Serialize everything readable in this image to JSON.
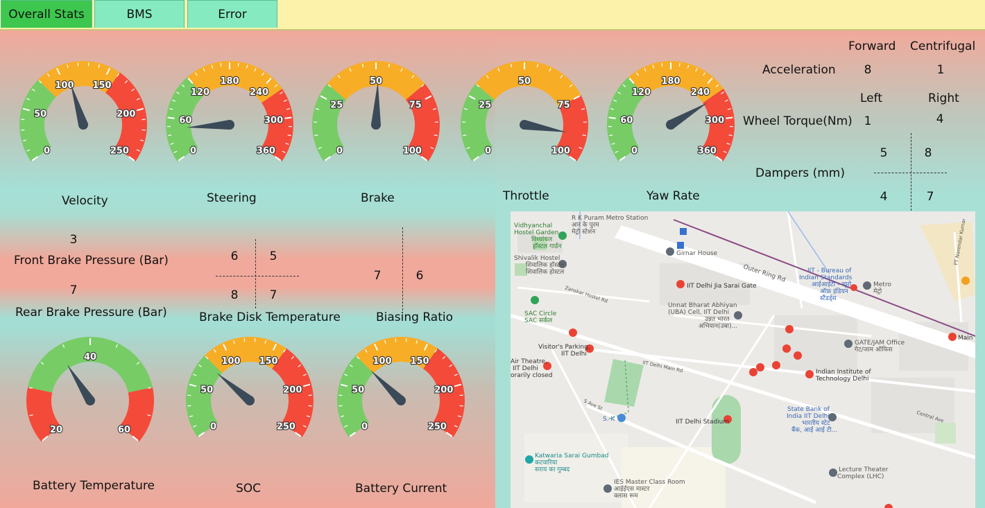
{
  "tabs": [
    {
      "label": "Overall Stats",
      "active": true
    },
    {
      "label": "BMS",
      "active": false
    },
    {
      "label": "Error",
      "active": false
    }
  ],
  "colors": {
    "green": "#77cc66",
    "orange": "#f8ad26",
    "red": "#f44a3a",
    "needle": "#3b4a58",
    "active_tab": "#3dc74f",
    "tab": "#86eac0",
    "tabbar": "#fdf2a9"
  },
  "gauges": [
    {
      "label": "Velocity",
      "ticks": [
        "0",
        "50",
        "100",
        "150",
        "200",
        "250"
      ],
      "min": 0,
      "max": 250,
      "green_to": 80,
      "orange_to": 160,
      "value": 108
    },
    {
      "label": "Steering",
      "ticks": [
        "0",
        "60",
        "120",
        "180",
        "240",
        "300",
        "360"
      ],
      "min": 0,
      "max": 360,
      "green_to": 120,
      "orange_to": 260,
      "value": 45
    },
    {
      "label": "Brake",
      "ticks": [
        "0",
        "25",
        "50",
        "75",
        "100"
      ],
      "min": 0,
      "max": 100,
      "green_to": 30,
      "orange_to": 70,
      "value": 51
    },
    {
      "label": "Throttle",
      "ticks": [
        "0",
        "25",
        "50",
        "75",
        "100"
      ],
      "min": 0,
      "max": 100,
      "green_to": 30,
      "orange_to": 75,
      "value": 90
    },
    {
      "label": "Yaw Rate",
      "ticks": [
        "0",
        "60",
        "120",
        "180",
        "240",
        "300",
        "360"
      ],
      "min": 0,
      "max": 360,
      "green_to": 120,
      "orange_to": 260,
      "value": 265
    },
    {
      "label": "Battery Temperature",
      "ticks": [
        "20",
        "40",
        "60"
      ],
      "min": 20,
      "max": 60,
      "green_to": 52,
      "orange_to": 52,
      "value": 35,
      "red_low": 28
    },
    {
      "label": "SOC",
      "ticks": [
        "0",
        "50",
        "100",
        "150",
        "200",
        "250"
      ],
      "min": 0,
      "max": 250,
      "green_to": 80,
      "orange_to": 160,
      "value": 75
    },
    {
      "label": "Battery Current",
      "ticks": [
        "0",
        "50",
        "100",
        "150",
        "200",
        "250"
      ],
      "min": 0,
      "max": 250,
      "green_to": 80,
      "orange_to": 160,
      "value": 80
    }
  ],
  "acceleration": {
    "label": "Acceleration",
    "forward_label": "Forward",
    "centrifugal_label": "Centrifugal",
    "forward": "8",
    "centrifugal": "1"
  },
  "wheel_torque": {
    "label": "Wheel Torque(Nm)",
    "left_label": "Left",
    "right_label": "Right",
    "left": "1",
    "right": "4"
  },
  "dampers": {
    "label": "Dampers (mm)",
    "fl": "5",
    "fr": "8",
    "rl": "4",
    "rr": "7"
  },
  "brake_pressure": {
    "front_label": "Front Brake Pressure (Bar)",
    "front": "3",
    "rear_label": "Rear Brake Pressure (Bar)",
    "rear": "7"
  },
  "brake_disk": {
    "label": "Brake Disk Temperature",
    "fl": "6",
    "fr": "5",
    "rl": "8",
    "rr": "7"
  },
  "biasing": {
    "label": "Biasing Ratio",
    "left": "7",
    "right": "6"
  },
  "map": {
    "places": [
      "R K Puram Metro Station",
      "आर के पुरम",
      "मेट्रो स्टेशन",
      "Vidhyanchal",
      "Hostel Garden",
      "विध्यांचल",
      "हॉस्टल गार्डन",
      "Girnar House",
      "Shivalik Hostel",
      "शिवालिक हॉस्टल",
      "शिवालिक होस्टल",
      "Outer Ring Rd",
      "IIT - Bureau of",
      "Indian Standards",
      "आईआईटी - ब्यूरो",
      "ऑफ़ इंडियन",
      "स्टैंडर्ड्स",
      "Metro",
      "मेट्रो",
      "IIT Delhi Jia Sarai Gate",
      "Unnat Bharat Abhiyan",
      "(UBA) Cell, IIT Delhi",
      "उन्नत भारत",
      "अभियान(उबा)...",
      "SAC Circle",
      "SAC सर्कल",
      "Visitor's Parking,",
      "IIT Delhi",
      "Air Theatre,",
      "IIT Delhi",
      "orarily closed",
      "GATE/JAM Office",
      "गेट/जाम ऑफिस",
      "Indian Institute of",
      "Technology Delhi",
      "S. K",
      "IIT Delhi Stadium",
      "State Bank of",
      "India IIT Delhi",
      "भारतीय स्टेट",
      "बैंक, आई आई टी...",
      "Katwaria Sarai Gumbad",
      "कटवारिया",
      "सराय का गुम्बद",
      "IES Master Class Room",
      "आईईएस मास्टर",
      "क्लास रूम",
      "Lecture Theater",
      "Complex (LHC)",
      "Main G",
      "Zanskar Hostel Rd",
      "IIT Delhi Main Rd",
      "S Ave St",
      "Central Ave",
      "PT Narendar Kumar"
    ]
  }
}
